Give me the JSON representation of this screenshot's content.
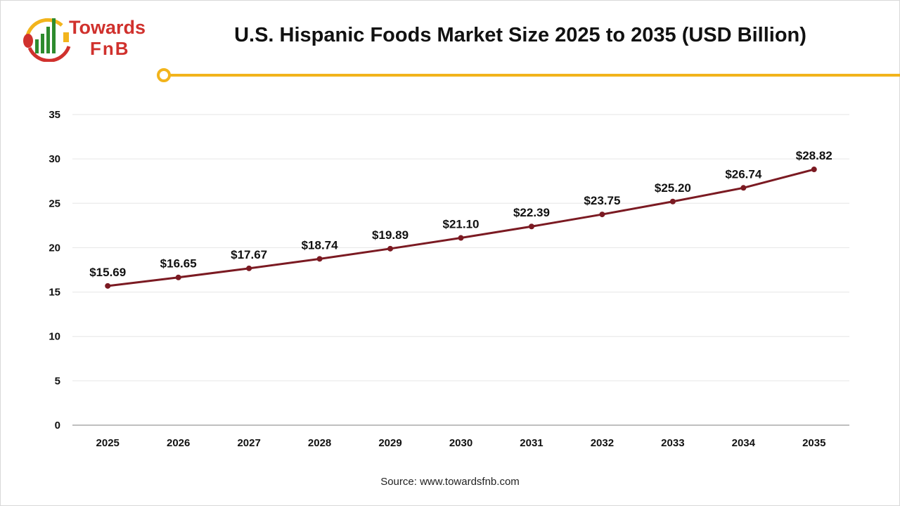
{
  "logo": {
    "line1": "Towards",
    "line2": "FnB"
  },
  "colors": {
    "line": "#7b1a22",
    "accent": "#f2b41c",
    "grid": "#e6e6e6",
    "axis": "#bfbfbf"
  },
  "source": "Source: www.towardsfnb.com",
  "chart_data": {
    "type": "line",
    "title": "U.S. Hispanic Foods Market Size 2025 to 2035 (USD Billion)",
    "categories": [
      "2025",
      "2026",
      "2027",
      "2028",
      "2029",
      "2030",
      "2031",
      "2032",
      "2033",
      "2034",
      "2035"
    ],
    "values": [
      15.69,
      16.65,
      17.67,
      18.74,
      19.89,
      21.1,
      22.39,
      23.75,
      25.2,
      26.74,
      28.82
    ],
    "data_labels": [
      "$15.69",
      "$16.65",
      "$17.67",
      "$18.74",
      "$19.89",
      "$21.10",
      "$22.39",
      "$23.75",
      "$25.20",
      "$26.74",
      "$28.82"
    ],
    "ylim": [
      0,
      35
    ],
    "yticks": [
      0,
      5,
      10,
      15,
      20,
      25,
      30,
      35
    ],
    "grid": true,
    "legend": "none"
  }
}
